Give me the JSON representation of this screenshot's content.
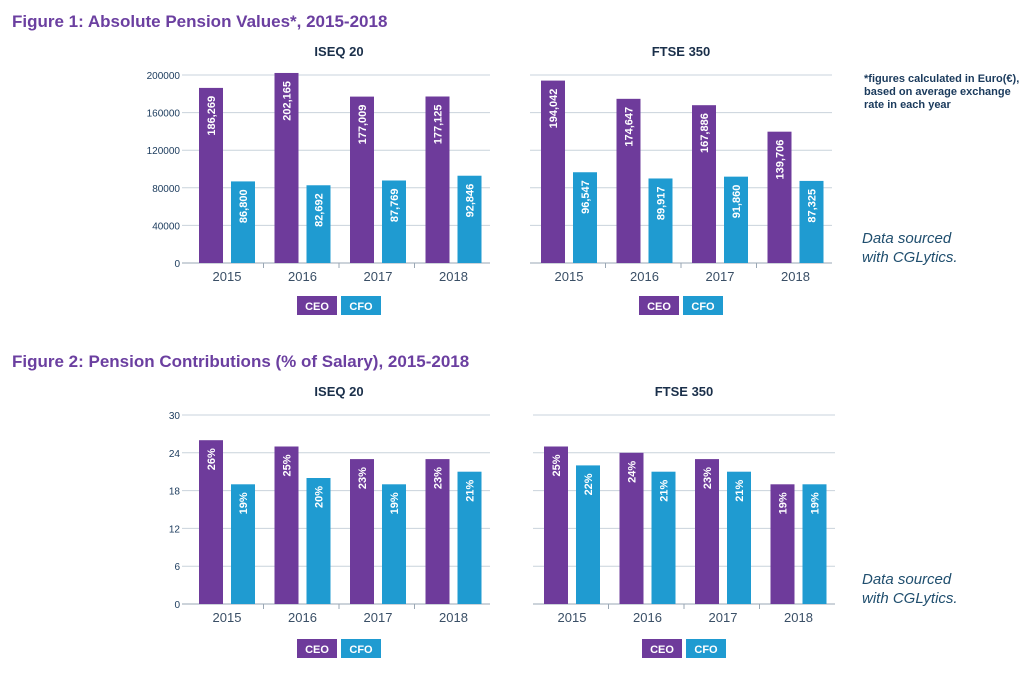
{
  "figure1": {
    "title": "Figure 1: Absolute Pension Values*, 2015-2018",
    "note": "*figures calculated in Euro(€), based on average exchange rate in each year",
    "source": [
      "Data sourced",
      "with CGLytics."
    ]
  },
  "figure2": {
    "title": "Figure 2: Pension Contributions (% of Salary), 2015-2018",
    "source": [
      "Data sourced",
      "with CGLytics."
    ]
  },
  "colors": {
    "ceo": "#6e3b9b",
    "cfo": "#1f9bd1",
    "axis": "#1a3a5c",
    "grid": "#c9d3dc"
  },
  "chart_data": [
    {
      "id": "f1-iseq",
      "type": "bar",
      "title": "ISEQ 20",
      "categories": [
        "2015",
        "2016",
        "2017",
        "2018"
      ],
      "series": [
        {
          "name": "CEO",
          "values": [
            186269,
            202165,
            177009,
            177125
          ],
          "labels": [
            "186,269",
            "202,165",
            "177,009",
            "177,125"
          ]
        },
        {
          "name": "CFO",
          "values": [
            86800,
            82692,
            87769,
            92846
          ],
          "labels": [
            "86,800",
            "82,692",
            "87,769",
            "92,846"
          ]
        }
      ],
      "ylim": [
        0,
        200000
      ],
      "yticks": [
        "0",
        "40000",
        "80000",
        "120000",
        "160000",
        "200000"
      ],
      "legend": "bottom",
      "grid": true
    },
    {
      "id": "f1-ftse",
      "type": "bar",
      "title": "FTSE 350",
      "categories": [
        "2015",
        "2016",
        "2017",
        "2018"
      ],
      "series": [
        {
          "name": "CEO",
          "values": [
            194042,
            174647,
            167886,
            139706
          ],
          "labels": [
            "194,042",
            "174,647",
            "167,886",
            "139,706"
          ]
        },
        {
          "name": "CFO",
          "values": [
            96547,
            89917,
            91860,
            87325
          ],
          "labels": [
            "96,547",
            "89,917",
            "91,860",
            "87,325"
          ]
        }
      ],
      "ylim": [
        0,
        200000
      ],
      "yticks": [],
      "legend": "bottom",
      "grid": true
    },
    {
      "id": "f2-iseq",
      "type": "bar",
      "title": "ISEQ 20",
      "categories": [
        "2015",
        "2016",
        "2017",
        "2018"
      ],
      "series": [
        {
          "name": "CEO",
          "values": [
            26,
            25,
            23,
            23
          ],
          "labels": [
            "26%",
            "25%",
            "23%",
            "23%"
          ]
        },
        {
          "name": "CFO",
          "values": [
            19,
            20,
            19,
            21
          ],
          "labels": [
            "19%",
            "20%",
            "19%",
            "21%"
          ]
        }
      ],
      "ylim": [
        0,
        30
      ],
      "yticks": [
        "0",
        "6",
        "12",
        "18",
        "24",
        "30"
      ],
      "legend": "bottom",
      "grid": true
    },
    {
      "id": "f2-ftse",
      "type": "bar",
      "title": "FTSE 350",
      "categories": [
        "2015",
        "2016",
        "2017",
        "2018"
      ],
      "series": [
        {
          "name": "CEO",
          "values": [
            25,
            24,
            23,
            19
          ],
          "labels": [
            "25%",
            "24%",
            "23%",
            "19%"
          ]
        },
        {
          "name": "CFO",
          "values": [
            22,
            21,
            21,
            19
          ],
          "labels": [
            "22%",
            "21%",
            "21%",
            "19%"
          ]
        }
      ],
      "ylim": [
        0,
        30
      ],
      "yticks": [],
      "legend": "bottom",
      "grid": true
    }
  ]
}
